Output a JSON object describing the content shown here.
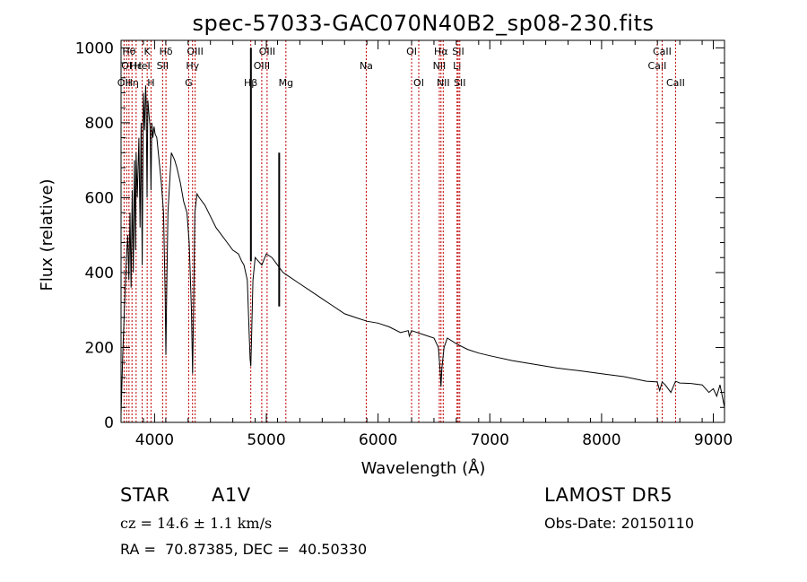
{
  "chart_data": {
    "type": "line",
    "title": "spec-57033-GAC070N40B2_sp08-230.fits",
    "xlabel": "Wavelength (Å)",
    "ylabel": "Flux (relative)",
    "xlim": [
      3700,
      9100
    ],
    "ylim": [
      0,
      1020
    ],
    "xticks": [
      4000,
      5000,
      6000,
      7000,
      8000,
      9000
    ],
    "yticks": [
      0,
      200,
      400,
      600,
      800,
      1000
    ],
    "grid": false,
    "series": [
      {
        "x": [
          3700,
          3715,
          3730,
          3745,
          3760,
          3770,
          3780,
          3790,
          3800,
          3810,
          3820,
          3830,
          3835,
          3845,
          3860,
          3870,
          3880,
          3889,
          3900,
          3910,
          3920,
          3925,
          3933,
          3940,
          3950,
          3960,
          3968,
          3975,
          3985,
          3995,
          4005,
          4020,
          4040,
          4060,
          4080,
          4095,
          4101,
          4108,
          4120,
          4150,
          4180,
          4200,
          4230,
          4260,
          4290,
          4310,
          4330,
          4340,
          4350,
          4360,
          4380,
          4400,
          4450,
          4500,
          4550,
          4600,
          4650,
          4700,
          4750,
          4780,
          4800,
          4830,
          4845,
          4855,
          4861,
          4867,
          4880,
          4900,
          4930,
          4960,
          5000,
          5050,
          5100,
          5150,
          5200,
          5300,
          5400,
          5500,
          5600,
          5700,
          5800,
          5900,
          6000,
          6100,
          6200,
          6270,
          6280,
          6300,
          6400,
          6500,
          6540,
          6555,
          6563,
          6571,
          6590,
          6620,
          6700,
          6800,
          6900,
          7000,
          7200,
          7400,
          7600,
          7800,
          8000,
          8200,
          8400,
          8498,
          8520,
          8542,
          8570,
          8620,
          8662,
          8700,
          8800,
          8900,
          8960,
          9000,
          9030,
          9060,
          9100
        ],
        "y": [
          20,
          180,
          300,
          420,
          500,
          380,
          560,
          360,
          620,
          400,
          700,
          460,
          720,
          600,
          760,
          520,
          800,
          420,
          880,
          780,
          900,
          860,
          600,
          860,
          820,
          790,
          620,
          800,
          760,
          790,
          770,
          760,
          700,
          640,
          560,
          340,
          180,
          330,
          560,
          720,
          700,
          680,
          640,
          590,
          560,
          480,
          300,
          130,
          320,
          560,
          610,
          600,
          580,
          550,
          520,
          500,
          480,
          460,
          450,
          430,
          420,
          380,
          250,
          170,
          150,
          210,
          380,
          440,
          430,
          420,
          450,
          440,
          420,
          400,
          390,
          370,
          350,
          330,
          310,
          290,
          280,
          270,
          265,
          255,
          240,
          245,
          230,
          245,
          235,
          225,
          200,
          140,
          95,
          145,
          200,
          225,
          210,
          195,
          185,
          178,
          165,
          155,
          145,
          138,
          130,
          122,
          110,
          108,
          85,
          108,
          100,
          80,
          110,
          105,
          104,
          100,
          80,
          90,
          70,
          100,
          40
        ]
      }
    ],
    "annotations": [
      {
        "x": 4862,
        "y": 1000,
        "label": "emission spike"
      },
      {
        "x": 5115,
        "y": 720,
        "label": "emission spike"
      }
    ],
    "line_markers": [
      {
        "wl": 3727,
        "label": "OII",
        "row": 3
      },
      {
        "wl": 3750,
        "label": "OI",
        "row": 2
      },
      {
        "wl": 3771,
        "label": "Hθ",
        "row": 1
      },
      {
        "wl": 3798,
        "label": "Hη",
        "row": 3
      },
      {
        "wl": 3835,
        "label": "Hε",
        "row": 2
      },
      {
        "wl": 3889,
        "label": "HeI",
        "row": 2
      },
      {
        "wl": 3934,
        "label": "K",
        "row": 1
      },
      {
        "wl": 3968,
        "label": "H",
        "row": 3
      },
      {
        "wl": 4072,
        "label": "SII",
        "row": 2
      },
      {
        "wl": 4102,
        "label": "Hδ",
        "row": 1
      },
      {
        "wl": 4305,
        "label": "G",
        "row": 3
      },
      {
        "wl": 4340,
        "label": "Hγ",
        "row": 2
      },
      {
        "wl": 4363,
        "label": "OIII",
        "row": 1
      },
      {
        "wl": 4861,
        "label": "Hβ",
        "row": 3
      },
      {
        "wl": 4959,
        "label": "OIII",
        "row": 2
      },
      {
        "wl": 5007,
        "label": "OIII",
        "row": 1
      },
      {
        "wl": 5175,
        "label": "Mg",
        "row": 3
      },
      {
        "wl": 5894,
        "label": "Na",
        "row": 2
      },
      {
        "wl": 6300,
        "label": "OI",
        "row": 1
      },
      {
        "wl": 6364,
        "label": "OI",
        "row": 3
      },
      {
        "wl": 6548,
        "label": "NII",
        "row": 2
      },
      {
        "wl": 6563,
        "label": "Hα",
        "row": 1
      },
      {
        "wl": 6583,
        "label": "NII",
        "row": 3
      },
      {
        "wl": 6707,
        "label": "Li",
        "row": 2
      },
      {
        "wl": 6717,
        "label": "SII",
        "row": 1
      },
      {
        "wl": 6731,
        "label": "SII",
        "row": 3
      },
      {
        "wl": 8498,
        "label": "CaII",
        "row": 2
      },
      {
        "wl": 8542,
        "label": "CaII",
        "row": 1
      },
      {
        "wl": 8662,
        "label": "CaII",
        "row": 3
      }
    ],
    "colors": {
      "spectrum": "#000000",
      "markers": "#c00000",
      "axes": "#000000"
    }
  },
  "info": {
    "class_label": "STAR",
    "subclass": "A1V",
    "survey": "LAMOST DR5",
    "cz": "cz = 14.6 ± 1.1 km/s",
    "obs_date": "Obs-Date: 20150110",
    "coords": "RA =  70.87385, DEC =  40.50330"
  }
}
